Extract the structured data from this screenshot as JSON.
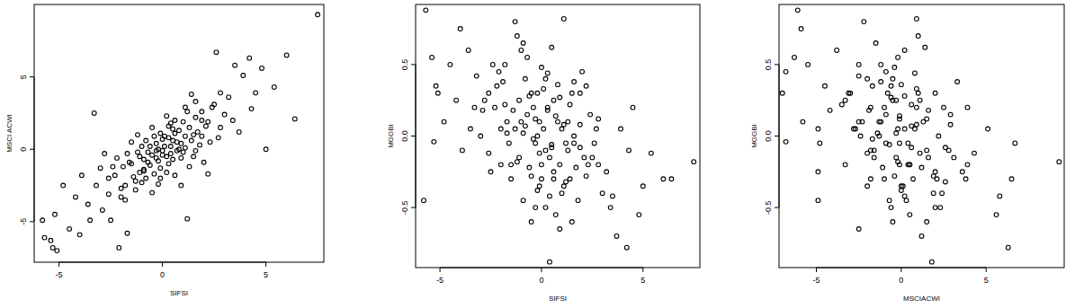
{
  "chart_data": [
    {
      "type": "scatter",
      "x_label": "SIFSI",
      "y_label": "MSCI ACWI",
      "marker": "circle",
      "color": "#000000",
      "xlim": [
        -6.2,
        7.8
      ],
      "ylim": [
        -7.8,
        10.0
      ],
      "xticks": [
        -5,
        0,
        5
      ],
      "yticks": [
        -5,
        0,
        5
      ],
      "x": [
        7.5,
        6.0,
        5.4,
        5.0,
        2.6,
        3.5,
        -3.3,
        -5.1,
        -5.4,
        -5.7,
        -5.2,
        -2.1,
        -1.7,
        1.2,
        -5.3,
        -5.8,
        -1.3,
        1.1,
        0.4,
        4.2,
        6.4,
        4.5,
        3.9,
        4.3,
        3.2,
        2.8,
        3.0,
        2.5,
        2.2,
        1.9,
        2.7,
        -2.6,
        -3.2,
        -2.9,
        -3.6,
        -4.2,
        -4.5,
        -3.9,
        -2.4,
        -2.0,
        -1.8,
        -2.2,
        -4.8,
        -0.9,
        -1.5,
        -0.5,
        0.6,
        1.5,
        0.2,
        1.6,
        2.0,
        0.1,
        -0.3,
        0.5,
        -0.7,
        0.9,
        -1.1,
        1.3,
        -0.2,
        0.4,
        -0.9,
        1.7,
        -1.4,
        0.0,
        0.8,
        -0.6,
        1.1,
        -1.6,
        0.3,
        -0.1,
        1.9,
        -1.9,
        0.6,
        -0.4,
        1.4,
        -1.2,
        0.2,
        -0.8,
        1.0,
        -0.3,
        0.7,
        -1.0,
        1.6,
        -0.5,
        0.1,
        2.1,
        -2.3,
        0.5,
        -0.1,
        1.2,
        -1.3,
        0.9,
        -0.6,
        0.3,
        -1.7,
        1.8,
        -0.2,
        0.0,
        2.4,
        -2.6,
        1.5,
        -0.8,
        0.4,
        -1.5,
        1.0,
        -0.4,
        0.6,
        -1.1,
        2.3,
        0.2,
        -0.7,
        1.3,
        -2.0,
        0.8,
        -0.2,
        1.1,
        -1.8,
        3.4,
        -3.0,
        0.0,
        -0.5,
        0.7,
        -1.0,
        0.3,
        1.6,
        -0.3,
        2.8,
        -3.5,
        0.5,
        -0.9,
        1.9,
        -2.8,
        3.7,
        0.9,
        -1.2,
        2.2,
        -0.1,
        1.4,
        -4.0,
        -2.5,
        4.8
      ],
      "y": [
        9.3,
        6.5,
        4.3,
        0.0,
        6.7,
        5.8,
        2.5,
        -7.0,
        -6.3,
        -6.1,
        -4.5,
        -6.8,
        -5.8,
        -4.8,
        -6.8,
        -4.9,
        -2.2,
        0.9,
        1.8,
        6.3,
        2.1,
        3.9,
        5.1,
        2.8,
        3.6,
        1.5,
        2.4,
        3.1,
        1.9,
        2.6,
        0.8,
        -3.1,
        -2.5,
        -4.2,
        -3.8,
        -3.3,
        -5.5,
        -1.8,
        -1.2,
        -2.7,
        -3.5,
        -0.6,
        -2.5,
        -1.5,
        0.5,
        -3.0,
        -1.8,
        -0.5,
        2.3,
        3.3,
        -0.9,
        0.2,
        -0.1,
        0.6,
        -0.9,
        0.4,
        -0.5,
        1.5,
        -0.8,
        -0.3,
        -1.4,
        1.2,
        -1.9,
        0.7,
        1.3,
        0.2,
        0.1,
        -0.9,
        -1.0,
        1.1,
        0.9,
        -1.2,
        2.0,
        -1.7,
        0.6,
        -0.2,
        -0.5,
        0.6,
        1.9,
        0.4,
        -0.1,
        -2.3,
        2.2,
        -0.4,
        0.9,
        1.6,
        -1.8,
        -0.7,
        -1.3,
        2.6,
        -2.8,
        -0.6,
        -1.1,
        1.6,
        -0.3,
        0.3,
        0.0,
        -0.4,
        2.9,
        -2.0,
        1.0,
        -2.0,
        0.2,
        -1.0,
        -0.2,
        0.9,
        1.1,
        -1.6,
        0.5,
        -1.6,
        -0.2,
        -1.2,
        -3.3,
        0.0,
        -2.4,
        2.9,
        -2.5,
        2.0,
        -1.3,
        -0.1,
        1.5,
        0.5,
        0.2,
        0.8,
        -0.1,
        -0.6,
        3.9,
        -4.9,
        1.4,
        -0.7,
        2.0,
        -0.3,
        1.2,
        -2.5,
        1.0,
        -1.7,
        -2.0,
        3.8,
        -5.9,
        -4.9,
        5.6
      ]
    },
    {
      "type": "scatter",
      "x_label": "SIFSI",
      "y_label": "MGGBI",
      "marker": "circle",
      "color": "#000000",
      "xlim": [
        -6.2,
        7.8
      ],
      "ylim": [
        -0.92,
        0.92
      ],
      "xticks": [
        -5,
        0,
        5
      ],
      "yticks": [
        -0.5,
        {
          "value": 0,
          "label": "0.0"
        },
        0.5
      ],
      "x": [
        7.5,
        6.0,
        5.4,
        5.0,
        2.6,
        3.5,
        -3.3,
        -5.1,
        -5.4,
        -5.7,
        -5.2,
        -2.1,
        -1.7,
        1.2,
        -5.3,
        -5.8,
        -1.3,
        1.1,
        0.4,
        4.2,
        6.4,
        4.5,
        3.9,
        4.3,
        3.2,
        2.8,
        3.0,
        2.5,
        2.2,
        1.9,
        2.7,
        -2.6,
        -3.2,
        -2.9,
        -3.6,
        -4.2,
        -4.5,
        -3.9,
        -2.4,
        -2.0,
        -1.8,
        -2.2,
        -4.8,
        -0.9,
        -1.5,
        -0.5,
        0.6,
        1.5,
        0.2,
        1.6,
        2.0,
        0.1,
        -0.3,
        0.5,
        -0.7,
        0.9,
        -1.1,
        1.3,
        -0.2,
        0.4,
        -0.9,
        1.7,
        -1.4,
        0.0,
        0.8,
        -0.6,
        1.1,
        -1.6,
        0.3,
        -0.1,
        1.9,
        -1.9,
        0.6,
        -0.4,
        1.4,
        -1.2,
        0.2,
        -0.8,
        1.0,
        -0.3,
        0.7,
        -1.0,
        1.6,
        -0.5,
        0.1,
        2.1,
        -2.3,
        0.5,
        -0.1,
        1.2,
        -1.3,
        0.9,
        -0.6,
        0.3,
        -1.7,
        1.8,
        -0.2,
        0.0,
        2.4,
        -2.6,
        1.5,
        -0.8,
        0.4,
        -1.5,
        1.0,
        -0.4,
        0.6,
        -1.1,
        2.3,
        0.2,
        -0.7,
        1.3,
        -2.0,
        0.8,
        -0.2,
        1.1,
        -1.8,
        3.4,
        -3.0,
        0.0,
        -0.5,
        0.7,
        -1.0,
        0.3,
        1.6,
        -0.3,
        2.8,
        -3.5,
        0.5,
        -0.9,
        1.9,
        -2.8,
        3.7,
        0.9,
        -1.2,
        2.2,
        -0.1,
        1.4,
        -4.0,
        -2.5,
        4.8
      ],
      "y": [
        -0.18,
        -0.3,
        -0.12,
        -0.35,
        -0.05,
        -0.42,
        0.2,
        0.3,
        0.55,
        0.88,
        0.35,
        0.45,
        0.1,
        -0.05,
        -0.04,
        -0.45,
        0.8,
        0.82,
        -0.88,
        -0.78,
        -0.3,
        0.2,
        0.05,
        -0.1,
        -0.25,
        0.12,
        -0.4,
        -0.15,
        -0.28,
        -0.08,
        0.05,
        0.3,
        0.42,
        0.18,
        0.6,
        0.25,
        0.5,
        -0.1,
        0.5,
        0.05,
        0.22,
        0.35,
        0.1,
        0.65,
        -0.2,
        0.3,
        -0.3,
        -0.6,
        -0.5,
        0.38,
        0.45,
        0.05,
        0.12,
        -0.08,
        0.15,
        -0.2,
        0.25,
        -0.1,
        0.3,
        -0.15,
        0.02,
        -0.22,
        0.18,
        -0.3,
        0.1,
        0.28,
        -0.35,
        -0.05,
        0.2,
        -0.12,
        0.08,
        0.38,
        -0.25,
        -0.02,
        0.22,
        -0.18,
        0.4,
        0.07,
        -0.4,
        -0.05,
        0.14,
        0.1,
        0.0,
        -0.28,
        0.33,
        -0.15,
        0.2,
        -0.06,
        0.1,
        -0.32,
        0.05,
        0.27,
        -0.22,
        0.18,
        0.02,
        -0.45,
        -0.38,
        0.48,
        0.15,
        -0.12,
        0.3,
        0.4,
        -0.42,
        -0.3,
        0.05,
        0.2,
        0.25,
        -0.15,
        -0.2,
        -0.1,
        0.55,
        0.1,
        -0.2,
        0.36,
        0.0,
        0.08,
        0.5,
        -0.5,
        0.0,
        -0.2,
        -0.6,
        -0.55,
        0.6,
        0.44,
        -0.05,
        -0.5,
        -0.2,
        0.05,
        0.62,
        -0.45,
        0.3,
        0.25,
        -0.7,
        -0.65,
        0.7,
        0.35,
        -0.35,
        -0.3,
        0.75,
        -0.25,
        -0.55
      ]
    },
    {
      "type": "scatter",
      "x_label": "MSCIACWI",
      "y_label": "MGGBI",
      "marker": "circle",
      "color": "#000000",
      "xlim": [
        -7.2,
        9.6
      ],
      "ylim": [
        -0.92,
        0.92
      ],
      "xticks": [
        -5,
        0,
        5
      ],
      "yticks": [
        -0.5,
        {
          "value": 0,
          "label": "0.0"
        },
        0.5
      ],
      "x": [
        9.3,
        6.5,
        4.3,
        0.0,
        6.7,
        5.8,
        2.5,
        -7.0,
        -6.3,
        -6.1,
        -4.5,
        -6.8,
        -5.8,
        -4.8,
        -6.8,
        -4.9,
        -2.2,
        0.9,
        1.8,
        6.3,
        2.1,
        3.9,
        5.1,
        2.8,
        3.6,
        1.5,
        2.4,
        3.1,
        1.9,
        2.6,
        0.8,
        -3.1,
        -2.5,
        -4.2,
        -3.8,
        -3.3,
        -5.5,
        -1.8,
        -1.2,
        -2.7,
        -3.5,
        -0.6,
        -2.5,
        -1.5,
        0.5,
        -3.0,
        -1.8,
        -0.5,
        2.3,
        3.3,
        -0.9,
        0.2,
        -0.1,
        0.6,
        -0.9,
        0.4,
        -0.5,
        1.5,
        -0.8,
        -0.3,
        -1.4,
        1.2,
        -1.9,
        0.7,
        1.3,
        0.2,
        0.1,
        -0.9,
        -1.0,
        1.1,
        0.9,
        -1.2,
        2.0,
        -1.7,
        0.6,
        -0.2,
        -0.5,
        0.6,
        1.9,
        0.4,
        -0.1,
        -2.3,
        2.2,
        -0.4,
        0.9,
        1.6,
        -1.8,
        -0.7,
        -1.3,
        2.6,
        -2.8,
        -0.6,
        -1.1,
        1.6,
        -0.3,
        0.3,
        0.0,
        -0.4,
        2.9,
        -2.0,
        1.0,
        -2.0,
        0.2,
        -1.0,
        -0.2,
        0.9,
        1.1,
        -1.6,
        0.5,
        -1.6,
        -0.2,
        -1.2,
        -3.3,
        0.0,
        -2.4,
        2.9,
        -2.5,
        2.0,
        -1.3,
        -0.1,
        1.5,
        0.5,
        0.2,
        0.8,
        -0.1,
        -0.6,
        3.9,
        -4.9,
        1.4,
        -0.7,
        2.0,
        -0.3,
        1.2,
        -2.5,
        1.0,
        -1.7,
        -2.0,
        3.8,
        -5.9,
        -4.9,
        5.6
      ],
      "y": [
        -0.18,
        -0.3,
        -0.12,
        -0.35,
        -0.05,
        -0.42,
        0.2,
        0.3,
        0.55,
        0.88,
        0.35,
        0.45,
        0.1,
        -0.05,
        -0.04,
        -0.45,
        0.8,
        0.82,
        -0.88,
        -0.78,
        -0.3,
        0.2,
        0.05,
        -0.1,
        -0.25,
        0.12,
        -0.4,
        -0.15,
        -0.28,
        -0.08,
        0.05,
        0.3,
        0.42,
        0.18,
        0.6,
        0.25,
        0.5,
        -0.1,
        0.5,
        0.05,
        0.22,
        0.35,
        0.1,
        0.65,
        -0.2,
        0.3,
        -0.3,
        -0.6,
        -0.5,
        0.38,
        0.45,
        0.05,
        0.12,
        -0.08,
        0.15,
        -0.2,
        0.25,
        -0.1,
        0.3,
        -0.15,
        0.02,
        -0.22,
        0.18,
        -0.3,
        0.1,
        0.28,
        -0.35,
        -0.05,
        0.2,
        -0.12,
        0.08,
        0.38,
        -0.25,
        -0.02,
        0.22,
        -0.18,
        0.4,
        0.07,
        -0.4,
        -0.05,
        0.14,
        0.1,
        0.0,
        -0.28,
        0.33,
        -0.15,
        0.2,
        -0.06,
        0.1,
        -0.32,
        0.05,
        0.27,
        -0.22,
        0.18,
        0.02,
        -0.45,
        -0.38,
        0.48,
        0.15,
        -0.12,
        0.3,
        0.4,
        -0.42,
        -0.3,
        0.05,
        0.2,
        0.25,
        -0.15,
        -0.2,
        -0.1,
        0.55,
        0.1,
        -0.2,
        0.36,
        0.0,
        0.08,
        0.5,
        -0.5,
        0.0,
        -0.2,
        -0.6,
        -0.55,
        0.6,
        0.44,
        -0.05,
        -0.5,
        -0.2,
        0.05,
        0.62,
        -0.45,
        0.3,
        0.25,
        -0.7,
        -0.65,
        0.7,
        0.35,
        -0.35,
        -0.3,
        0.75,
        -0.25,
        -0.55
      ]
    }
  ]
}
